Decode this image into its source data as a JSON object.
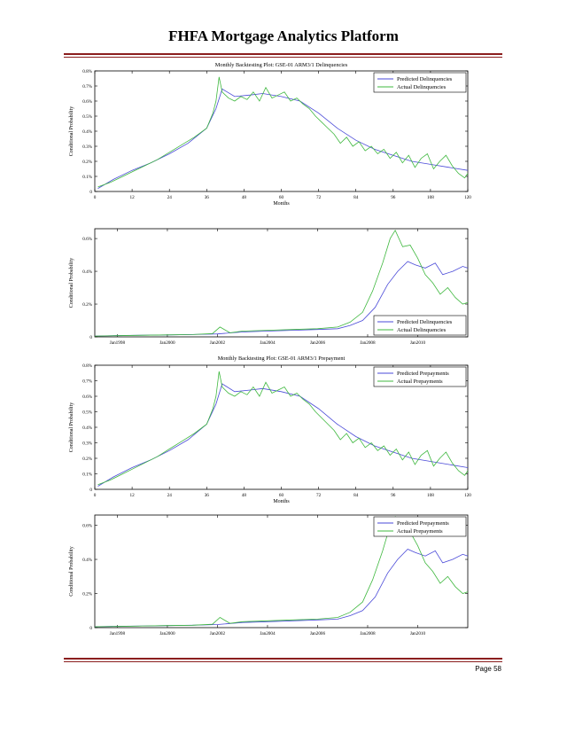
{
  "page": {
    "title": "FHFA Mortgage Analytics Platform",
    "page_number": "Page 58"
  },
  "chart_data": [
    {
      "type": "line",
      "title": "Monthly Backtesting Plot: GSE-01 ARM3/1 Delinquencies",
      "xlabel": "Months",
      "ylabel": "Conditional Probability",
      "x_ticks": [
        "0",
        "12",
        "24",
        "36",
        "48",
        "60",
        "72",
        "84",
        "96",
        "108",
        "120"
      ],
      "y_ticks": [
        "0",
        "0.1%",
        "0.2%",
        "0.3%",
        "0.4%",
        "0.5%",
        "0.6%",
        "0.7%",
        "0.8%"
      ],
      "xlim": [
        0,
        120
      ],
      "ylim": [
        0,
        0.8
      ],
      "legend_position": "top-right",
      "series": [
        {
          "name": "Predicted Delinquencies",
          "color": "#4a4ad8",
          "x": [
            1,
            6,
            12,
            18,
            24,
            30,
            36,
            39,
            41,
            45,
            50,
            54,
            60,
            66,
            72,
            78,
            84,
            90,
            96,
            102,
            108,
            114,
            120
          ],
          "y": [
            0.02,
            0.08,
            0.14,
            0.19,
            0.25,
            0.32,
            0.42,
            0.55,
            0.68,
            0.63,
            0.64,
            0.65,
            0.63,
            0.6,
            0.52,
            0.42,
            0.34,
            0.28,
            0.24,
            0.2,
            0.18,
            0.16,
            0.14
          ]
        },
        {
          "name": "Actual Delinquencies",
          "color": "#3fb83f",
          "x": [
            1,
            5,
            9,
            12,
            16,
            20,
            24,
            28,
            32,
            36,
            38,
            39,
            40,
            41,
            43,
            45,
            47,
            49,
            51,
            53,
            55,
            57,
            59,
            61,
            63,
            65,
            67,
            69,
            71,
            73,
            75,
            77,
            79,
            81,
            83,
            85,
            87,
            89,
            91,
            93,
            95,
            97,
            99,
            101,
            103,
            105,
            107,
            109,
            111,
            113,
            115,
            117,
            119,
            120
          ],
          "y": [
            0.03,
            0.06,
            0.1,
            0.13,
            0.17,
            0.21,
            0.26,
            0.31,
            0.36,
            0.42,
            0.52,
            0.6,
            0.76,
            0.66,
            0.62,
            0.6,
            0.63,
            0.61,
            0.66,
            0.6,
            0.69,
            0.62,
            0.64,
            0.66,
            0.6,
            0.62,
            0.58,
            0.55,
            0.5,
            0.46,
            0.42,
            0.38,
            0.32,
            0.36,
            0.3,
            0.33,
            0.27,
            0.3,
            0.25,
            0.28,
            0.22,
            0.26,
            0.19,
            0.24,
            0.16,
            0.22,
            0.25,
            0.15,
            0.2,
            0.24,
            0.17,
            0.12,
            0.09,
            0.12
          ]
        }
      ]
    },
    {
      "type": "line",
      "title": "",
      "xlabel": "",
      "ylabel": "Conditional Probability",
      "x_ticks": [
        "Jan1998",
        "Jan2000",
        "Jan2002",
        "Jan2004",
        "Jan2006",
        "Jan2008",
        "Jan2010"
      ],
      "x_tick_years": [
        1998,
        2000,
        2002,
        2004,
        2006,
        2008,
        2010
      ],
      "y_ticks": [
        "0",
        "0.2%",
        "0.4%",
        "0.6%"
      ],
      "xlim": [
        1997.1,
        2012.0
      ],
      "ylim": [
        0,
        0.66
      ],
      "legend_position": "bottom-right",
      "series": [
        {
          "name": "Predicted Delinquencies",
          "color": "#4a4ad8",
          "x": [
            1997.1,
            1998,
            1999,
            2000,
            2001,
            2002,
            2003,
            2004,
            2005,
            2006,
            2006.8,
            2007.3,
            2007.8,
            2008.3,
            2008.8,
            2009.2,
            2009.6,
            2009.9,
            2010.3,
            2010.7,
            2011.0,
            2011.4,
            2011.8,
            2012.0
          ],
          "y": [
            0.005,
            0.008,
            0.01,
            0.012,
            0.014,
            0.018,
            0.03,
            0.035,
            0.04,
            0.045,
            0.05,
            0.07,
            0.1,
            0.18,
            0.32,
            0.4,
            0.46,
            0.44,
            0.42,
            0.45,
            0.38,
            0.4,
            0.43,
            0.42
          ]
        },
        {
          "name": "Actual Delinquencies",
          "color": "#3fb83f",
          "x": [
            1997.1,
            1998,
            1999,
            2000,
            2001,
            2001.8,
            2002.1,
            2002.5,
            2003,
            2004,
            2005,
            2006,
            2006.8,
            2007.3,
            2007.8,
            2008.2,
            2008.6,
            2008.9,
            2009.1,
            2009.4,
            2009.7,
            2010.0,
            2010.3,
            2010.6,
            2010.9,
            2011.2,
            2011.5,
            2011.8,
            2012.0
          ],
          "y": [
            0.005,
            0.007,
            0.01,
            0.012,
            0.014,
            0.02,
            0.06,
            0.025,
            0.035,
            0.04,
            0.045,
            0.05,
            0.06,
            0.09,
            0.15,
            0.28,
            0.45,
            0.6,
            0.65,
            0.55,
            0.56,
            0.48,
            0.38,
            0.33,
            0.26,
            0.3,
            0.24,
            0.2,
            0.21
          ]
        }
      ]
    },
    {
      "type": "line",
      "title": "Monthly Backtesting Plot: GSE-01 ARM3/1 Prepayment",
      "xlabel": "Months",
      "ylabel": "Conditional Probability",
      "x_ticks": [
        "0",
        "12",
        "24",
        "36",
        "48",
        "60",
        "72",
        "84",
        "96",
        "108",
        "120"
      ],
      "y_ticks": [
        "0",
        "0.1%",
        "0.2%",
        "0.3%",
        "0.4%",
        "0.5%",
        "0.6%",
        "0.7%",
        "0.8%"
      ],
      "xlim": [
        0,
        120
      ],
      "ylim": [
        0,
        0.8
      ],
      "legend_position": "top-right",
      "series": [
        {
          "name": "Predicted Prepayments",
          "color": "#4a4ad8",
          "x": [
            1,
            6,
            12,
            18,
            24,
            30,
            36,
            39,
            41,
            45,
            50,
            54,
            60,
            66,
            72,
            78,
            84,
            90,
            96,
            102,
            108,
            114,
            120
          ],
          "y": [
            0.02,
            0.08,
            0.14,
            0.19,
            0.25,
            0.32,
            0.42,
            0.55,
            0.68,
            0.63,
            0.64,
            0.65,
            0.63,
            0.6,
            0.52,
            0.42,
            0.34,
            0.28,
            0.24,
            0.2,
            0.18,
            0.16,
            0.14
          ]
        },
        {
          "name": "Actual Prepayments",
          "color": "#3fb83f",
          "x": [
            1,
            5,
            9,
            12,
            16,
            20,
            24,
            28,
            32,
            36,
            38,
            39,
            40,
            41,
            43,
            45,
            47,
            49,
            51,
            53,
            55,
            57,
            59,
            61,
            63,
            65,
            67,
            69,
            71,
            73,
            75,
            77,
            79,
            81,
            83,
            85,
            87,
            89,
            91,
            93,
            95,
            97,
            99,
            101,
            103,
            105,
            107,
            109,
            111,
            113,
            115,
            117,
            119,
            120
          ],
          "y": [
            0.03,
            0.06,
            0.1,
            0.13,
            0.17,
            0.21,
            0.26,
            0.31,
            0.36,
            0.42,
            0.52,
            0.6,
            0.76,
            0.66,
            0.62,
            0.6,
            0.63,
            0.61,
            0.66,
            0.6,
            0.69,
            0.62,
            0.64,
            0.66,
            0.6,
            0.62,
            0.58,
            0.55,
            0.5,
            0.46,
            0.42,
            0.38,
            0.32,
            0.36,
            0.3,
            0.33,
            0.27,
            0.3,
            0.25,
            0.28,
            0.22,
            0.26,
            0.19,
            0.24,
            0.16,
            0.22,
            0.25,
            0.15,
            0.2,
            0.24,
            0.17,
            0.12,
            0.09,
            0.12
          ]
        }
      ]
    },
    {
      "type": "line",
      "title": "",
      "xlabel": "",
      "ylabel": "Conditional Probability",
      "x_ticks": [
        "Jan1998",
        "Jan2000",
        "Jan2002",
        "Jan2004",
        "Jan2006",
        "Jan2008",
        "Jan2010"
      ],
      "x_tick_years": [
        1998,
        2000,
        2002,
        2004,
        2006,
        2008,
        2010
      ],
      "y_ticks": [
        "0",
        "0.2%",
        "0.4%",
        "0.6%"
      ],
      "xlim": [
        1997.1,
        2012.0
      ],
      "ylim": [
        0,
        0.66
      ],
      "legend_position": "top-right",
      "series": [
        {
          "name": "Predicted Prepayments",
          "color": "#4a4ad8",
          "x": [
            1997.1,
            1998,
            1999,
            2000,
            2001,
            2002,
            2003,
            2004,
            2005,
            2006,
            2006.8,
            2007.3,
            2007.8,
            2008.3,
            2008.8,
            2009.2,
            2009.6,
            2009.9,
            2010.3,
            2010.7,
            2011.0,
            2011.4,
            2011.8,
            2012.0
          ],
          "y": [
            0.005,
            0.008,
            0.01,
            0.012,
            0.014,
            0.018,
            0.03,
            0.035,
            0.04,
            0.045,
            0.05,
            0.07,
            0.1,
            0.18,
            0.32,
            0.4,
            0.46,
            0.44,
            0.42,
            0.45,
            0.38,
            0.4,
            0.43,
            0.42
          ]
        },
        {
          "name": "Actual Prepayments",
          "color": "#3fb83f",
          "x": [
            1997.1,
            1998,
            1999,
            2000,
            2001,
            2001.8,
            2002.1,
            2002.5,
            2003,
            2004,
            2005,
            2006,
            2006.8,
            2007.3,
            2007.8,
            2008.2,
            2008.6,
            2008.9,
            2009.1,
            2009.4,
            2009.7,
            2010.0,
            2010.3,
            2010.6,
            2010.9,
            2011.2,
            2011.5,
            2011.8,
            2012.0
          ],
          "y": [
            0.005,
            0.007,
            0.01,
            0.012,
            0.014,
            0.02,
            0.06,
            0.025,
            0.035,
            0.04,
            0.045,
            0.05,
            0.06,
            0.09,
            0.15,
            0.28,
            0.45,
            0.6,
            0.65,
            0.55,
            0.56,
            0.48,
            0.38,
            0.33,
            0.26,
            0.3,
            0.24,
            0.2,
            0.21
          ]
        }
      ]
    }
  ]
}
